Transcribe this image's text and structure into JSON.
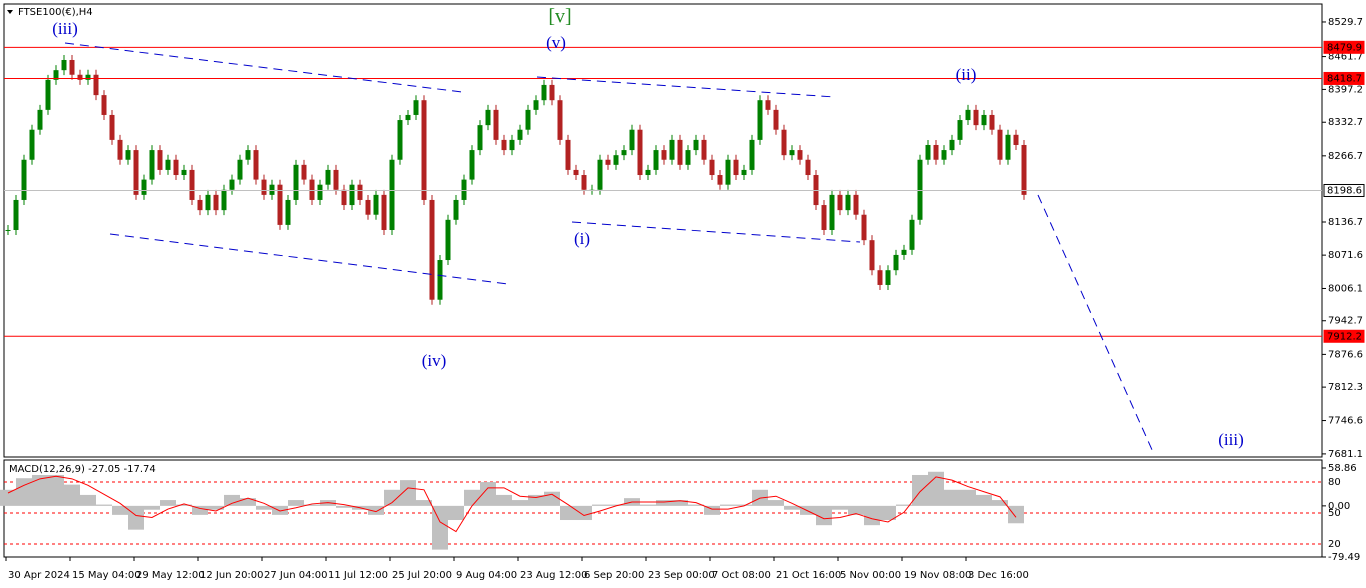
{
  "chart_data": [
    {
      "type": "candle",
      "title": "FTSE100(€),H4",
      "x_labels": [
        "30 Apr 2024",
        "15 May 04:00",
        "29 May 12:00",
        "12 Jun 20:00",
        "27 Jun 04:00",
        "11 Jul 12:00",
        "25 Jul 20:00",
        "9 Aug 04:00",
        "23 Aug 12:00",
        "6 Sep 20:00",
        "23 Sep 00:00",
        "7 Oct 08:00",
        "21 Oct 16:00",
        "5 Nov 00:00",
        "19 Nov 08:00",
        "3 Dec 16:00"
      ],
      "values": [
        8121,
        8180,
        8259,
        8318,
        8357,
        8416,
        8435,
        8455,
        8426,
        8416,
        8426,
        8386,
        8347,
        8298,
        8259,
        8278,
        8190,
        8220,
        8278,
        8239,
        8259,
        8229,
        8239,
        8180,
        8160,
        8190,
        8160,
        8200,
        8220,
        8259,
        8278,
        8220,
        8190,
        8210,
        8131,
        8180,
        8249,
        8220,
        8180,
        8210,
        8239,
        8200,
        8170,
        8210,
        8180,
        8151,
        8190,
        8121,
        8259,
        8337,
        8347,
        8376,
        8180,
        7984,
        8062,
        8141,
        8180,
        8220,
        8278,
        8327,
        8357,
        8298,
        8278,
        8298,
        8318,
        8357,
        8376,
        8406,
        8376,
        8298,
        8239,
        8229,
        8200,
        8200,
        8259,
        8249,
        8268,
        8278,
        8318,
        8229,
        8239,
        8278,
        8259,
        8298,
        8249,
        8278,
        8298,
        8259,
        8229,
        8210,
        8259,
        8229,
        8239,
        8298,
        8376,
        8357,
        8318,
        8268,
        8278,
        8259,
        8229,
        8170,
        8121,
        8190,
        8160,
        8190,
        8151,
        8101,
        8042,
        8013,
        8042,
        8072,
        8082,
        8141,
        8259,
        8288,
        8259,
        8278,
        8298,
        8337,
        8357,
        8327,
        8347,
        8318,
        8259,
        8308,
        8288,
        8190
      ],
      "up_color": "#008000",
      "down_color": "#b22222",
      "ylim": [
        7675,
        8565
      ],
      "yticks": [
        8529.7,
        8461.7,
        8397.2,
        8332.7,
        8266.7,
        8136.7,
        8071.6,
        8006.1,
        7942.7,
        7876.6,
        7812.3,
        7746.6,
        7681.1
      ],
      "levels": [
        {
          "value": 8479.9,
          "color": "#ff0000"
        },
        {
          "value": 8418.7,
          "color": "#ff0000"
        },
        {
          "value": 8198.6,
          "color": "#c0c0c0"
        },
        {
          "value": 7912.2,
          "color": "#ff0000"
        }
      ],
      "annotations": [
        "[v]",
        "(iii)",
        "(v)",
        "(ii)",
        "(i)",
        "(iv)",
        "(iii)"
      ]
    },
    {
      "type": "macd",
      "title": "MACD(12,26,9) -27.05 -17.74",
      "series": [
        {
          "color": "#c0c0c0",
          "values": [
            25,
            43,
            48,
            48,
            33,
            17,
            2,
            -14,
            -37,
            -6,
            9,
            2,
            -14,
            -6,
            17,
            12,
            -6,
            -14,
            9,
            2,
            9,
            -3,
            -6,
            -14,
            25,
            40,
            9,
            -68,
            -22,
            25,
            37,
            17,
            9,
            17,
            22,
            -22,
            -22,
            2,
            2,
            12,
            2,
            9,
            9,
            2,
            -14,
            2,
            2,
            25,
            9,
            -6,
            -14,
            -30,
            -6,
            -14,
            -30,
            -22,
            2,
            48,
            53,
            25,
            25,
            17,
            9,
            -27.05
          ]
        },
        {
          "color": "#ff0000",
          "values": [
            20,
            32,
            42,
            46,
            42,
            32,
            18,
            4,
            -15,
            -18,
            -5,
            3,
            -4,
            -8,
            4,
            12,
            4,
            -8,
            -3,
            3,
            5,
            2,
            -3,
            -9,
            5,
            28,
            25,
            -25,
            -40,
            0,
            28,
            28,
            15,
            13,
            18,
            2,
            -15,
            -8,
            0,
            6,
            6,
            6,
            8,
            5,
            -5,
            -5,
            0,
            12,
            15,
            4,
            -8,
            -20,
            -18,
            -12,
            -20,
            -25,
            -10,
            22,
            45,
            40,
            30,
            22,
            14,
            -17.74
          ]
        }
      ],
      "ylim": [
        -79.49,
        71.3
      ],
      "yticks": [
        58.86,
        {
          "value": 0,
          "label": "0.00"
        },
        -79.49
      ],
      "y2lim": [
        7.4,
        101.3
      ],
      "y2ticks": [
        80,
        50,
        20
      ]
    }
  ]
}
